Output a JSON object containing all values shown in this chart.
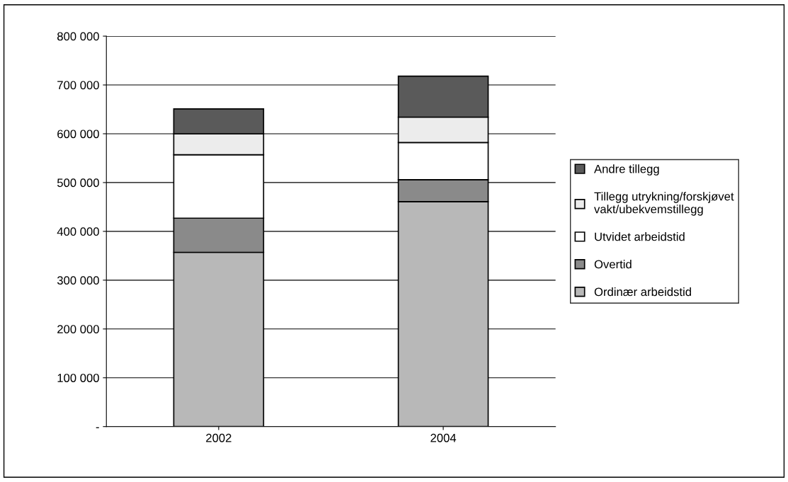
{
  "chart_data": {
    "type": "bar",
    "stacked": true,
    "categories": [
      "2002",
      "2004"
    ],
    "series": [
      {
        "name": "Ordinær arbeidstid",
        "color": "#b8b8b8",
        "values": [
          357000,
          461000
        ]
      },
      {
        "name": "Overtid",
        "color": "#8a8a8a",
        "values": [
          70000,
          45000
        ]
      },
      {
        "name": "Utvidet arbeidstid",
        "color": "#ffffff",
        "values": [
          130000,
          76000
        ]
      },
      {
        "name": "Tillegg utrykning/forskjøvet\nvakt/ubekvemstillegg",
        "color": "#ececec",
        "values": [
          43000,
          52000
        ]
      },
      {
        "name": "Andre tillegg",
        "color": "#5a5a5a",
        "values": [
          51000,
          84000
        ]
      }
    ],
    "ylim": [
      0,
      800000
    ],
    "yticks": [
      {
        "value": 0,
        "label": "-"
      },
      {
        "value": 100000,
        "label": "100 000"
      },
      {
        "value": 200000,
        "label": "200 000"
      },
      {
        "value": 300000,
        "label": "300 000"
      },
      {
        "value": 400000,
        "label": "400 000"
      },
      {
        "value": 500000,
        "label": "500 000"
      },
      {
        "value": 600000,
        "label": "600 000"
      },
      {
        "value": 700000,
        "label": "700 000"
      },
      {
        "value": 800000,
        "label": "800 000"
      }
    ],
    "grid": "y",
    "legend": "right"
  }
}
